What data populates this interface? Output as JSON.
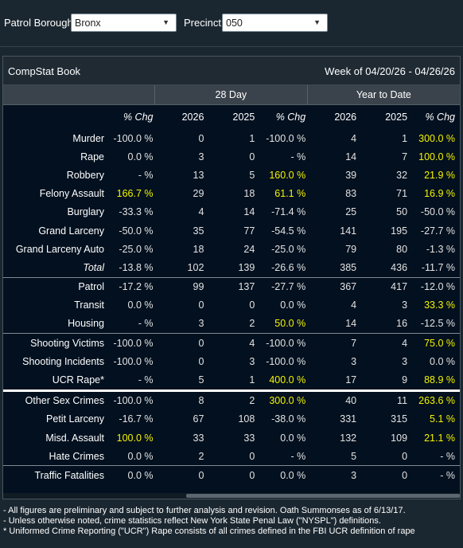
{
  "filters": {
    "borough_label": "Patrol Borough:",
    "borough_value": "Bronx",
    "precinct_label": "Precinct:",
    "precinct_value": "050"
  },
  "book": {
    "title": "CompStat Book",
    "week": "Week of 04/20/26 - 04/26/26"
  },
  "columns": {
    "group_28": "28 Day",
    "group_ytd": "Year to Date",
    "headers": [
      "% Chg",
      "2026",
      "2025",
      "% Chg",
      "2026",
      "2025",
      "% Chg"
    ]
  },
  "rows": [
    {
      "label": "Murder",
      "v": [
        "-100.0 %",
        "0",
        "1",
        "-100.0 %",
        "4",
        "1",
        "300.0 %"
      ],
      "hi": [
        false,
        false,
        false,
        false,
        false,
        false,
        true
      ]
    },
    {
      "label": "Rape",
      "v": [
        "0.0 %",
        "3",
        "0",
        "- %",
        "14",
        "7",
        "100.0 %"
      ],
      "hi": [
        false,
        false,
        false,
        false,
        false,
        false,
        true
      ]
    },
    {
      "label": "Robbery",
      "v": [
        "- %",
        "13",
        "5",
        "160.0 %",
        "39",
        "32",
        "21.9 %"
      ],
      "hi": [
        false,
        false,
        false,
        true,
        false,
        false,
        true
      ]
    },
    {
      "label": "Felony Assault",
      "v": [
        "166.7 %",
        "29",
        "18",
        "61.1 %",
        "83",
        "71",
        "16.9 %"
      ],
      "hi": [
        true,
        false,
        false,
        true,
        false,
        false,
        true
      ]
    },
    {
      "label": "Burglary",
      "v": [
        "-33.3 %",
        "4",
        "14",
        "-71.4 %",
        "25",
        "50",
        "-50.0 %"
      ],
      "hi": [
        false,
        false,
        false,
        false,
        false,
        false,
        false
      ]
    },
    {
      "label": "Grand Larceny",
      "v": [
        "-50.0 %",
        "35",
        "77",
        "-54.5 %",
        "141",
        "195",
        "-27.7 %"
      ],
      "hi": [
        false,
        false,
        false,
        false,
        false,
        false,
        false
      ]
    },
    {
      "label": "Grand Larceny Auto",
      "v": [
        "-25.0 %",
        "18",
        "24",
        "-25.0 %",
        "79",
        "80",
        "-1.3 %"
      ],
      "hi": [
        false,
        false,
        false,
        false,
        false,
        false,
        false
      ]
    },
    {
      "label": "Total",
      "v": [
        "-13.8 %",
        "102",
        "139",
        "-26.6 %",
        "385",
        "436",
        "-11.7 %"
      ],
      "hi": [
        false,
        false,
        false,
        false,
        false,
        false,
        false
      ],
      "total": true
    },
    {
      "label": "Patrol",
      "v": [
        "-17.2 %",
        "99",
        "137",
        "-27.7 %",
        "367",
        "417",
        "-12.0 %"
      ],
      "hi": [
        false,
        false,
        false,
        false,
        false,
        false,
        false
      ],
      "brk": "thin"
    },
    {
      "label": "Transit",
      "v": [
        "0.0 %",
        "0",
        "0",
        "0.0 %",
        "4",
        "3",
        "33.3 %"
      ],
      "hi": [
        false,
        false,
        false,
        false,
        false,
        false,
        true
      ]
    },
    {
      "label": "Housing",
      "v": [
        "- %",
        "3",
        "2",
        "50.0 %",
        "14",
        "16",
        "-12.5 %"
      ],
      "hi": [
        false,
        false,
        false,
        true,
        false,
        false,
        false
      ]
    },
    {
      "label": "Shooting Victims",
      "v": [
        "-100.0 %",
        "0",
        "4",
        "-100.0 %",
        "7",
        "4",
        "75.0 %"
      ],
      "hi": [
        false,
        false,
        false,
        false,
        false,
        false,
        true
      ],
      "brk": "thin"
    },
    {
      "label": "Shooting Incidents",
      "v": [
        "-100.0 %",
        "0",
        "3",
        "-100.0 %",
        "3",
        "3",
        "0.0 %"
      ],
      "hi": [
        false,
        false,
        false,
        false,
        false,
        false,
        false
      ]
    },
    {
      "label": "UCR Rape*",
      "v": [
        "- %",
        "5",
        "1",
        "400.0 %",
        "17",
        "9",
        "88.9 %"
      ],
      "hi": [
        false,
        false,
        false,
        true,
        false,
        false,
        true
      ]
    },
    {
      "label": "Other Sex Crimes",
      "v": [
        "-100.0 %",
        "8",
        "2",
        "300.0 %",
        "40",
        "11",
        "263.6 %"
      ],
      "hi": [
        false,
        false,
        false,
        true,
        false,
        false,
        true
      ],
      "brk": "white"
    },
    {
      "label": "Petit Larceny",
      "v": [
        "-16.7 %",
        "67",
        "108",
        "-38.0 %",
        "331",
        "315",
        "5.1 %"
      ],
      "hi": [
        false,
        false,
        false,
        false,
        false,
        false,
        true
      ]
    },
    {
      "label": "Misd. Assault",
      "v": [
        "100.0 %",
        "33",
        "33",
        "0.0 %",
        "132",
        "109",
        "21.1 %"
      ],
      "hi": [
        true,
        false,
        false,
        false,
        false,
        false,
        true
      ]
    },
    {
      "label": "Hate Crimes",
      "v": [
        "0.0 %",
        "2",
        "0",
        "- %",
        "5",
        "0",
        "- %"
      ],
      "hi": [
        false,
        false,
        false,
        false,
        false,
        false,
        false
      ]
    },
    {
      "label": "Traffic Fatalities",
      "v": [
        "0.0 %",
        "0",
        "0",
        "0.0 %",
        "3",
        "0",
        "- %"
      ],
      "hi": [
        false,
        false,
        false,
        false,
        false,
        false,
        false
      ],
      "brk": "thin"
    }
  ],
  "notes": [
    "- All figures are preliminary and subject to further analysis and revision. Oath Summonses as of 6/13/17.",
    "- Unless otherwise noted, crime statistics reflect New York State Penal Law (\"NYSPL\") definitions.",
    "* Uniformed Crime Reporting (\"UCR\") Rape consists of all crimes defined in the FBI UCR definition of rape"
  ],
  "colors": {
    "highlight": "#f4f400",
    "background": "#02101f",
    "header": "#3a434b"
  }
}
